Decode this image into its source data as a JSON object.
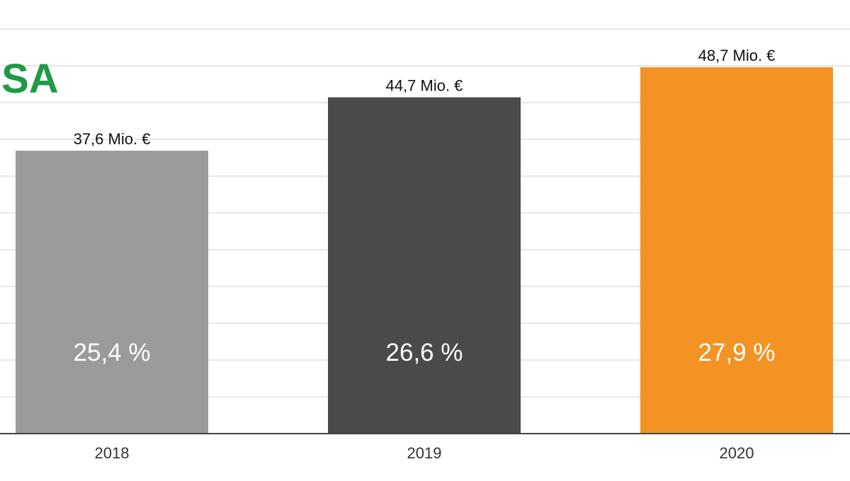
{
  "logo": {
    "text": "ÖSA",
    "color": "#1f9a47"
  },
  "chart_data": {
    "type": "bar",
    "categories": [
      "2018",
      "2019",
      "2020"
    ],
    "values": [
      37.6,
      44.7,
      48.7
    ],
    "value_labels": [
      "37,6 Mio. €",
      "44,7 Mio. €",
      "48,7 Mio. €"
    ],
    "inner_labels": [
      "25,4 %",
      "26,6 %",
      "27,9 %"
    ],
    "bar_colors": [
      "#9b9b9b",
      "#4a4a4a",
      "#f39324"
    ],
    "grid": true,
    "ylim": [
      0,
      55
    ]
  }
}
